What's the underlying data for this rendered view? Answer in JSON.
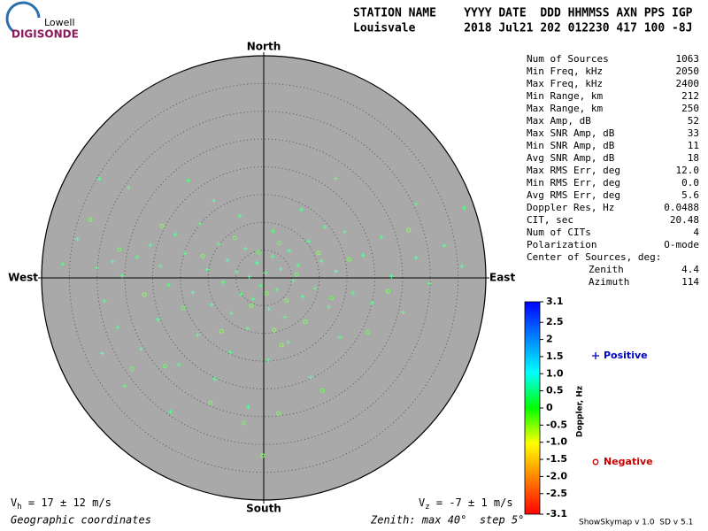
{
  "header": {
    "logo_top": "Lowell",
    "logo_bottom": "DIGISONDE",
    "columns": "STATION NAME    YYYY DATE  DDD HHMMSS AXN PPS IGP",
    "values": "Louisvale       2018 Jul21 202 012230 417 100 -8J"
  },
  "stats": {
    "rows": [
      [
        "Num of Sources",
        "1063"
      ],
      [
        "Min Freq, kHz",
        "2050"
      ],
      [
        "Max Freq, kHz",
        "2400"
      ],
      [
        "Min Range, km",
        "212"
      ],
      [
        "Max Range, km",
        "250"
      ],
      [
        "Max Amp, dB",
        "52"
      ],
      [
        "Max SNR Amp, dB",
        "33"
      ],
      [
        "Min SNR Amp, dB",
        "11"
      ],
      [
        "Avg SNR Amp, dB",
        "18"
      ],
      [
        "Max RMS Err, deg",
        "12.0"
      ],
      [
        "Min RMS Err, deg",
        "0.0"
      ],
      [
        "Avg RMS Err, deg",
        "5.6"
      ],
      [
        "Doppler Res, Hz",
        "0.0488"
      ],
      [
        "CIT, sec",
        "20.48"
      ],
      [
        "Num of CITs",
        "4"
      ],
      [
        "Polarization",
        "O-mode"
      ]
    ],
    "center_title": "Center of Sources, deg:",
    "center_rows": [
      [
        "Zenith",
        "4.4"
      ],
      [
        "Azimuth",
        "114"
      ]
    ]
  },
  "footer": {
    "vh": {
      "symbol": "V",
      "subscript": "h",
      "text": " = 17 ± 12 m/s"
    },
    "vz": {
      "symbol": "V",
      "subscript": "z",
      "text": " = -7 ± 1 m/s"
    },
    "coords": "Geographic coordinates",
    "zenith": "Zenith: max 40°  step 5°",
    "version": "ShowSkymap v 1.0  SD v 5.1"
  },
  "chart_data": {
    "type": "skymap",
    "directions": {
      "north": "North",
      "south": "South",
      "east": "East",
      "west": "West"
    },
    "rlim": [
      0,
      40
    ],
    "rticks": [
      5,
      10,
      15,
      20,
      25,
      30,
      35
    ],
    "grid": true,
    "background": "#a9a9a9",
    "colorbar": {
      "label": "Doppler, Hz",
      "clim": [
        -3.1,
        3.1
      ],
      "ticks": [
        3.1,
        2.5,
        2,
        1.5,
        {
          "value": 1,
          "label": "1.0"
        },
        0.5,
        0,
        -0.5,
        {
          "value": -1,
          "label": "-1.0"
        },
        -1.5,
        {
          "value": -2,
          "label": "-2.0"
        },
        -2.5,
        -3.1
      ],
      "colorscale": [
        "#ff0000",
        "#ff8000",
        "#ffff00",
        "#00ff00",
        "#00ffff",
        "#0080ff",
        "#0000ff"
      ]
    },
    "series": [
      {
        "name": "Positive",
        "color": "#0000cc",
        "marker": "plus",
        "x": [
          -29.6,
          -24.3,
          -33.5,
          -36.2,
          -30.1,
          -27.2,
          -25.5,
          -22.8,
          -20.4,
          -18.6,
          -17.1,
          -15.9,
          -14.2,
          -12.8,
          -11.5,
          -10.2,
          -9.4,
          -8.1,
          -7.3,
          -6.5,
          -5.8,
          -4.9,
          -4.1,
          -3.3,
          -2.6,
          -1.9,
          -1.2,
          -0.5,
          0.3,
          0.9,
          1.6,
          2.4,
          3.1,
          3.8,
          4.6,
          5.3,
          6.2,
          7.0,
          8.1,
          9.2,
          10.4,
          11.7,
          13.0,
          14.6,
          16.1,
          17.9,
          19.5,
          21.2,
          23.0,
          25.1,
          27.4,
          29.8,
          32.5,
          35.7,
          36.1,
          -28.7,
          -26.3,
          -22.1,
          -19.0,
          -15.3,
          -11.9,
          -8.8,
          -6.0,
          -2.9,
          0.8,
          4.4,
          8.5,
          13.7,
          -13.6,
          -9.0,
          -4.3,
          1.7,
          6.8,
          11.0,
          -29.1,
          -25.0,
          -16.8,
          -2.8,
          13.0,
          27.4
        ],
        "values": [
          17.8,
          16.3,
          7.0,
          2.5,
          1.8,
          2.9,
          0.4,
          3.7,
          5.9,
          2.1,
          -1.3,
          7.8,
          4.4,
          -2.6,
          9.7,
          1.5,
          -4.8,
          6.1,
          -0.8,
          3.2,
          -6.4,
          1.1,
          -2.9,
          5.3,
          0.2,
          -3.8,
          2.7,
          -1.4,
          0.9,
          -5.6,
          3.8,
          -2.2,
          1.6,
          -7.1,
          4.9,
          -0.5,
          2.3,
          -3.4,
          6.6,
          -1.9,
          3.0,
          -5.2,
          1.2,
          8.3,
          -2.7,
          4.1,
          -4.5,
          7.4,
          0.3,
          -6.2,
          3.6,
          -1.0,
          5.8,
          2.1,
          12.6,
          -4.2,
          -8.9,
          -12.8,
          -7.5,
          -15.6,
          -10.3,
          -18.2,
          -13.4,
          -9.1,
          -14.8,
          -11.6,
          -17.9,
          -10.7,
          17.5,
          13.9,
          11.2,
          8.4,
          12.3,
          9.2,
          -13.6,
          -19.5,
          -24.1,
          -23.2,
          17.9,
          13.3
        ],
        "doppler": [
          0.4,
          0.3,
          0.5,
          0.2,
          0.3,
          0.4,
          0.2,
          0.3,
          0.5,
          0.3,
          0.2,
          0.4,
          0.3,
          0.5,
          0.2,
          0.3,
          0.4,
          0.3,
          0.2,
          0.5,
          0.3,
          0.4,
          0.2,
          0.3,
          0.4,
          0.3,
          0.5,
          0.2,
          0.3,
          0.4,
          0.3,
          0.2,
          0.4,
          0.3,
          0.5,
          0.2,
          0.3,
          0.4,
          0.3,
          0.2,
          0.4,
          0.3,
          0.5,
          0.3,
          0.2,
          0.4,
          0.3,
          0.2,
          0.4,
          0.3,
          0.5,
          0.2,
          0.3,
          0.4,
          0.3,
          0.2,
          0.4,
          0.3,
          0.5,
          0.3,
          0.2,
          0.4,
          0.3,
          0.2,
          0.4,
          0.3,
          0.5,
          0.2,
          0.3,
          0.4,
          0.3,
          0.2,
          0.4,
          0.3,
          0.5,
          0.2,
          0.3,
          0.4,
          0.3,
          0.2
        ]
      },
      {
        "name": "Negative",
        "color": "#cc0000",
        "marker": "circle",
        "x": [
          -31.2,
          -26.0,
          -21.5,
          -18.3,
          -14.5,
          -11.0,
          -7.6,
          -5.2,
          -2.2,
          -0.9,
          0.5,
          1.9,
          2.8,
          4.1,
          5.9,
          7.5,
          9.9,
          12.2,
          15.4,
          18.8,
          22.4,
          26.1,
          -23.7,
          -9.6,
          -3.6,
          2.7,
          3.2,
          -17.8,
          -0.2,
          10.6
        ],
        "values": [
          10.5,
          5.1,
          -3.0,
          9.3,
          -5.5,
          3.9,
          -9.6,
          7.2,
          -5.0,
          4.6,
          -2.8,
          -9.4,
          6.3,
          -4.1,
          0.6,
          -7.9,
          4.5,
          -3.6,
          3.3,
          -9.8,
          -2.4,
          8.6,
          -16.4,
          -22.5,
          -26.1,
          -24.4,
          -12.1,
          -15.9,
          -32.0,
          -20.3
        ],
        "doppler": [
          -0.2,
          -0.1,
          -0.3,
          -0.2,
          -0.1,
          -0.2,
          -0.3,
          -0.1,
          -0.2,
          -0.1,
          -0.2,
          -0.3,
          -0.1,
          -0.2,
          -0.1,
          -0.2,
          -0.3,
          -0.1,
          -0.2,
          -0.1,
          -0.2,
          -0.3,
          -0.1,
          -0.2,
          -0.1,
          -0.2,
          -0.3,
          -0.1,
          -0.2,
          -0.1
        ]
      }
    ]
  }
}
